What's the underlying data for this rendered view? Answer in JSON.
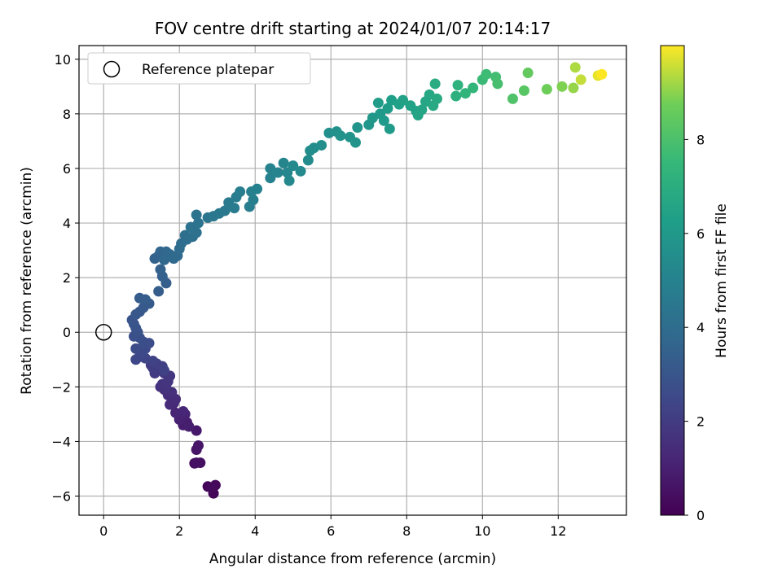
{
  "chart_data": {
    "type": "scatter",
    "title": "FOV centre drift starting at 2024/01/07 20:14:17",
    "xlabel": "Angular distance from reference (arcmin)",
    "ylabel": "Rotation from reference (arcmin)",
    "xlim": [
      -0.65,
      13.8
    ],
    "ylim": [
      -6.7,
      10.5
    ],
    "xticks": [
      0,
      2,
      4,
      6,
      8,
      10,
      12
    ],
    "yticks": [
      -6,
      -4,
      -2,
      0,
      2,
      4,
      6,
      8,
      10
    ],
    "xtick_labels": [
      "0",
      "2",
      "4",
      "6",
      "8",
      "10",
      "12"
    ],
    "ytick_labels": [
      "−6",
      "−4",
      "−2",
      "0",
      "2",
      "4",
      "6",
      "8",
      "10"
    ],
    "grid": true,
    "legend": {
      "placement": "top-left",
      "entries": [
        {
          "label": "Reference platepar",
          "marker": "open-circle",
          "color": "#000000"
        }
      ]
    },
    "reference_point": {
      "x": 0,
      "y": 0
    },
    "colorbar": {
      "label": "Hours from first FF file",
      "range": [
        0,
        10
      ],
      "ticks": [
        0,
        2,
        4,
        6,
        8
      ],
      "tick_labels": [
        "0",
        "2",
        "4",
        "6",
        "8"
      ],
      "colormap": "viridis"
    },
    "series": [
      {
        "color_by": "hours",
        "points": [
          [
            2.75,
            -5.65,
            0.1
          ],
          [
            2.9,
            -5.9,
            0.15
          ],
          [
            2.95,
            -5.6,
            0.2
          ],
          [
            2.85,
            -5.7,
            0.25
          ],
          [
            2.4,
            -4.8,
            0.4
          ],
          [
            2.55,
            -4.78,
            0.45
          ],
          [
            2.45,
            -4.78,
            0.5
          ],
          [
            2.45,
            -4.3,
            0.6
          ],
          [
            2.5,
            -4.15,
            0.65
          ],
          [
            2.45,
            -3.6,
            0.75
          ],
          [
            2.1,
            -3.4,
            0.85
          ],
          [
            2.2,
            -3.3,
            0.9
          ],
          [
            2.25,
            -3.45,
            0.95
          ],
          [
            2.0,
            -3.2,
            1.0
          ],
          [
            2.15,
            -3.0,
            1.05
          ],
          [
            2.0,
            -3.05,
            1.1
          ],
          [
            1.9,
            -2.95,
            1.15
          ],
          [
            2.1,
            -2.9,
            1.2
          ],
          [
            1.85,
            -2.6,
            1.3
          ],
          [
            1.75,
            -2.65,
            1.35
          ],
          [
            1.9,
            -2.45,
            1.4
          ],
          [
            1.7,
            -2.3,
            1.45
          ],
          [
            1.8,
            -2.2,
            1.5
          ],
          [
            1.6,
            -2.1,
            1.55
          ],
          [
            1.5,
            -2.0,
            1.6
          ],
          [
            1.65,
            -2.05,
            1.65
          ],
          [
            1.55,
            -1.9,
            1.7
          ],
          [
            1.7,
            -1.8,
            1.75
          ],
          [
            1.75,
            -1.6,
            1.8
          ],
          [
            1.6,
            -1.5,
            1.85
          ],
          [
            1.45,
            -1.35,
            1.9
          ],
          [
            1.35,
            -1.5,
            1.95
          ],
          [
            1.3,
            -1.3,
            2.0
          ],
          [
            1.25,
            -1.2,
            2.05
          ],
          [
            1.4,
            -1.15,
            2.1
          ],
          [
            1.55,
            -1.25,
            2.15
          ],
          [
            1.6,
            -1.4,
            2.2
          ],
          [
            1.3,
            -1.05,
            2.25
          ],
          [
            1.1,
            -0.95,
            2.35
          ],
          [
            0.95,
            -0.9,
            2.4
          ],
          [
            0.85,
            -1.0,
            2.45
          ],
          [
            1.0,
            -0.75,
            2.5
          ],
          [
            1.1,
            -0.6,
            2.55
          ],
          [
            0.85,
            -0.6,
            2.6
          ],
          [
            1.2,
            -0.4,
            2.65
          ],
          [
            1.05,
            -0.35,
            2.7
          ],
          [
            0.95,
            -0.2,
            2.75
          ],
          [
            0.8,
            -0.15,
            2.8
          ],
          [
            0.9,
            0.0,
            2.85
          ],
          [
            0.85,
            0.15,
            2.9
          ],
          [
            0.8,
            0.3,
            2.95
          ],
          [
            0.75,
            0.45,
            3.0
          ],
          [
            0.85,
            0.65,
            3.05
          ],
          [
            0.95,
            0.75,
            3.1
          ],
          [
            1.05,
            0.9,
            3.15
          ],
          [
            1.2,
            1.05,
            3.2
          ],
          [
            0.95,
            1.25,
            3.25
          ],
          [
            1.1,
            1.2,
            3.3
          ],
          [
            1.45,
            1.5,
            3.35
          ],
          [
            1.65,
            1.8,
            3.4
          ],
          [
            1.55,
            2.05,
            3.45
          ],
          [
            1.5,
            2.3,
            3.5
          ],
          [
            1.35,
            2.7,
            3.55
          ],
          [
            1.45,
            2.8,
            3.6
          ],
          [
            1.5,
            2.95,
            3.65
          ],
          [
            1.65,
            2.95,
            3.7
          ],
          [
            1.75,
            2.85,
            3.75
          ],
          [
            1.6,
            2.65,
            3.8
          ],
          [
            1.85,
            2.7,
            3.85
          ],
          [
            1.95,
            2.8,
            3.9
          ],
          [
            2.0,
            3.05,
            3.95
          ],
          [
            2.05,
            3.25,
            4.0
          ],
          [
            2.2,
            3.4,
            4.05
          ],
          [
            2.15,
            3.55,
            4.1
          ],
          [
            2.35,
            3.5,
            4.15
          ],
          [
            2.45,
            3.65,
            4.2
          ],
          [
            2.3,
            3.85,
            4.25
          ],
          [
            2.5,
            4.0,
            4.3
          ],
          [
            2.45,
            4.3,
            4.35
          ],
          [
            2.75,
            4.2,
            4.4
          ],
          [
            2.9,
            4.25,
            4.45
          ],
          [
            3.05,
            4.35,
            4.5
          ],
          [
            3.2,
            4.45,
            4.55
          ],
          [
            3.3,
            4.75,
            4.6
          ],
          [
            3.45,
            4.55,
            4.65
          ],
          [
            3.5,
            4.95,
            4.7
          ],
          [
            3.6,
            5.15,
            4.75
          ],
          [
            3.85,
            4.6,
            4.8
          ],
          [
            3.95,
            4.85,
            4.85
          ],
          [
            3.9,
            5.15,
            4.9
          ],
          [
            4.05,
            5.25,
            4.95
          ],
          [
            4.4,
            5.65,
            5.0
          ],
          [
            4.4,
            6.0,
            5.05
          ],
          [
            4.6,
            5.85,
            5.1
          ],
          [
            4.75,
            6.2,
            5.15
          ],
          [
            4.85,
            5.85,
            5.2
          ],
          [
            4.9,
            5.55,
            5.25
          ],
          [
            5.0,
            6.1,
            5.3
          ],
          [
            5.2,
            5.9,
            5.35
          ],
          [
            5.4,
            6.3,
            5.4
          ],
          [
            5.45,
            6.65,
            5.45
          ],
          [
            5.55,
            6.75,
            5.5
          ],
          [
            5.75,
            6.85,
            5.55
          ],
          [
            5.95,
            7.3,
            5.6
          ],
          [
            6.15,
            7.35,
            5.65
          ],
          [
            6.25,
            7.2,
            5.7
          ],
          [
            6.5,
            7.15,
            5.75
          ],
          [
            6.65,
            6.95,
            5.8
          ],
          [
            6.7,
            7.5,
            5.85
          ],
          [
            7.0,
            7.6,
            5.9
          ],
          [
            7.1,
            7.85,
            5.95
          ],
          [
            7.3,
            8.0,
            6.0
          ],
          [
            7.4,
            7.75,
            6.05
          ],
          [
            7.55,
            7.45,
            6.1
          ],
          [
            7.25,
            8.4,
            6.15
          ],
          [
            7.5,
            8.2,
            6.2
          ],
          [
            7.6,
            8.5,
            6.3
          ],
          [
            7.8,
            8.35,
            6.35
          ],
          [
            7.9,
            8.5,
            6.4
          ],
          [
            8.1,
            8.3,
            6.45
          ],
          [
            8.25,
            8.1,
            6.5
          ],
          [
            8.3,
            7.95,
            6.55
          ],
          [
            8.4,
            8.15,
            6.6
          ],
          [
            8.5,
            8.45,
            6.65
          ],
          [
            8.6,
            8.7,
            6.7
          ],
          [
            8.7,
            8.3,
            6.75
          ],
          [
            8.8,
            8.55,
            6.8
          ],
          [
            8.75,
            9.1,
            6.9
          ],
          [
            9.3,
            8.65,
            7.1
          ],
          [
            9.35,
            9.05,
            7.2
          ],
          [
            9.55,
            8.75,
            7.3
          ],
          [
            9.75,
            8.95,
            7.4
          ],
          [
            10.0,
            9.25,
            7.6
          ],
          [
            10.1,
            9.45,
            7.7
          ],
          [
            10.35,
            9.35,
            7.8
          ],
          [
            10.4,
            9.1,
            7.9
          ],
          [
            10.8,
            8.55,
            8.1
          ],
          [
            11.1,
            8.85,
            8.3
          ],
          [
            11.2,
            9.5,
            8.5
          ],
          [
            11.7,
            8.9,
            8.7
          ],
          [
            12.1,
            9.0,
            8.9
          ],
          [
            12.4,
            8.95,
            9.1
          ],
          [
            12.45,
            9.7,
            9.3
          ],
          [
            12.6,
            9.25,
            9.5
          ],
          [
            13.05,
            9.4,
            9.8
          ],
          [
            13.15,
            9.45,
            10.0
          ]
        ]
      }
    ]
  }
}
